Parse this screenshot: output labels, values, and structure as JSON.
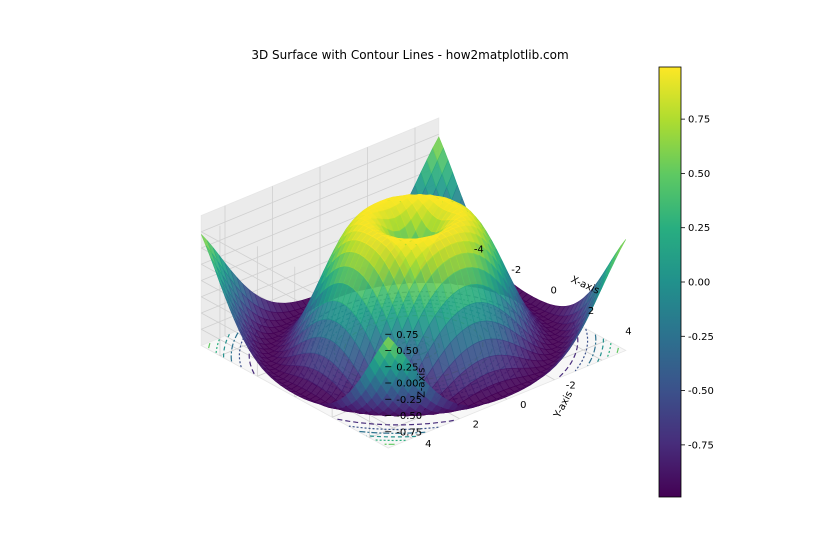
{
  "chart_data": {
    "type": "surface3d",
    "title": "3D Surface with Contour Lines - how2matplotlib.com",
    "xlabel": "X-axis",
    "ylabel": "Y-axis",
    "zlabel": "Z-axis",
    "xlim": [
      -5,
      5
    ],
    "ylim": [
      -5,
      5
    ],
    "zlim": [
      -1,
      1
    ],
    "function": "sin(sqrt(x^2 + y^2))",
    "x_ticks": [
      "-4",
      "-2",
      "0",
      "2",
      "4"
    ],
    "y_ticks": [
      "-2",
      "0",
      "2",
      "4"
    ],
    "z_ticks": [
      "0.75",
      "0.50",
      "0.25",
      "0.00",
      "-0.25",
      "-0.50",
      "-0.75"
    ],
    "contour_offset_z": -1,
    "contour_levels": [
      -0.75,
      -0.5,
      -0.25,
      0,
      0.25,
      0.5,
      0.75
    ],
    "colormap": "viridis",
    "colorbar": {
      "range": [
        -0.99,
        0.99
      ],
      "ticks": [
        "0.75",
        "0.50",
        "0.25",
        "0.00",
        "-0.25",
        "-0.50",
        "-0.75"
      ],
      "tick_values": [
        0.75,
        0.5,
        0.25,
        0,
        -0.25,
        -0.5,
        -0.75
      ]
    },
    "grid": true,
    "pane_color": "#f2f2f2"
  }
}
